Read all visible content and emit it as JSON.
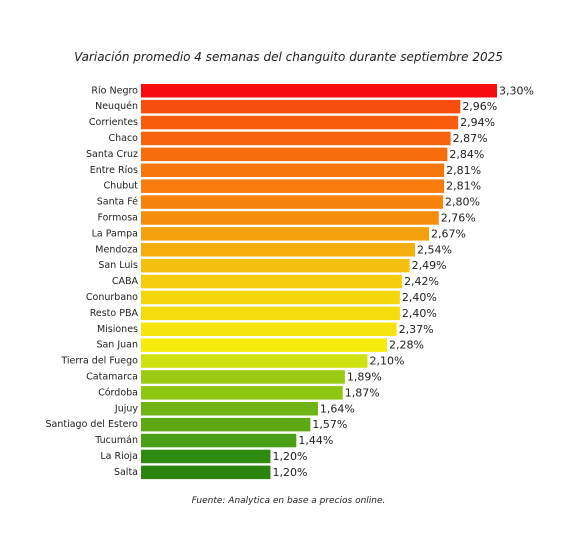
{
  "chart_data": {
    "type": "bar",
    "orientation": "horizontal",
    "title": "Variación promedio 4 semanas del changuito durante septiembre 2025",
    "source": "Fuente: Analytica en base a precios online.",
    "xlim": [
      0,
      3.3
    ],
    "grid": false,
    "legend": "none",
    "categories": [
      "Río Negro",
      "Neuquén",
      "Corrientes",
      "Chaco",
      "Santa Cruz",
      "Entre Ríos",
      "Chubut",
      "Santa Fé",
      "Formosa",
      "La Pampa",
      "Mendoza",
      "San Luis",
      "CABA",
      "Conurbano",
      "Resto PBA",
      "Misiones",
      "San Juan",
      "Tierra del Fuego",
      "Catamarca",
      "Córdoba",
      "Jujuy",
      "Santiago del Estero",
      "Tucumán",
      "La Rioja",
      "Salta"
    ],
    "values": [
      3.3,
      2.96,
      2.94,
      2.87,
      2.84,
      2.81,
      2.81,
      2.8,
      2.76,
      2.67,
      2.54,
      2.49,
      2.42,
      2.4,
      2.4,
      2.37,
      2.28,
      2.1,
      1.89,
      1.87,
      1.64,
      1.57,
      1.44,
      1.2,
      1.2
    ],
    "value_labels": [
      "3,30%",
      "2,96%",
      "2,94%",
      "2,87%",
      "2,84%",
      "2,81%",
      "2,81%",
      "2,80%",
      "2,76%",
      "2,67%",
      "2,54%",
      "2,49%",
      "2,42%",
      "2,40%",
      "2,40%",
      "2,37%",
      "2,28%",
      "2,10%",
      "1,89%",
      "1,87%",
      "1,64%",
      "1,57%",
      "1,44%",
      "1,20%",
      "1,20%"
    ],
    "colors": [
      "#f70d0d",
      "#f74d0d",
      "#f75c0d",
      "#f7640d",
      "#f76d0d",
      "#f7760d",
      "#f77c0d",
      "#f7830d",
      "#f78d0d",
      "#f5a00d",
      "#f5ae0d",
      "#f5bf0d",
      "#f5cd0d",
      "#f5d60d",
      "#f5dc0d",
      "#f5e40d",
      "#f5eb0d",
      "#cfe10f",
      "#9acb12",
      "#8fc614",
      "#6fb414",
      "#5da815",
      "#4a9f16",
      "#2e8b10",
      "#2a840e"
    ]
  }
}
